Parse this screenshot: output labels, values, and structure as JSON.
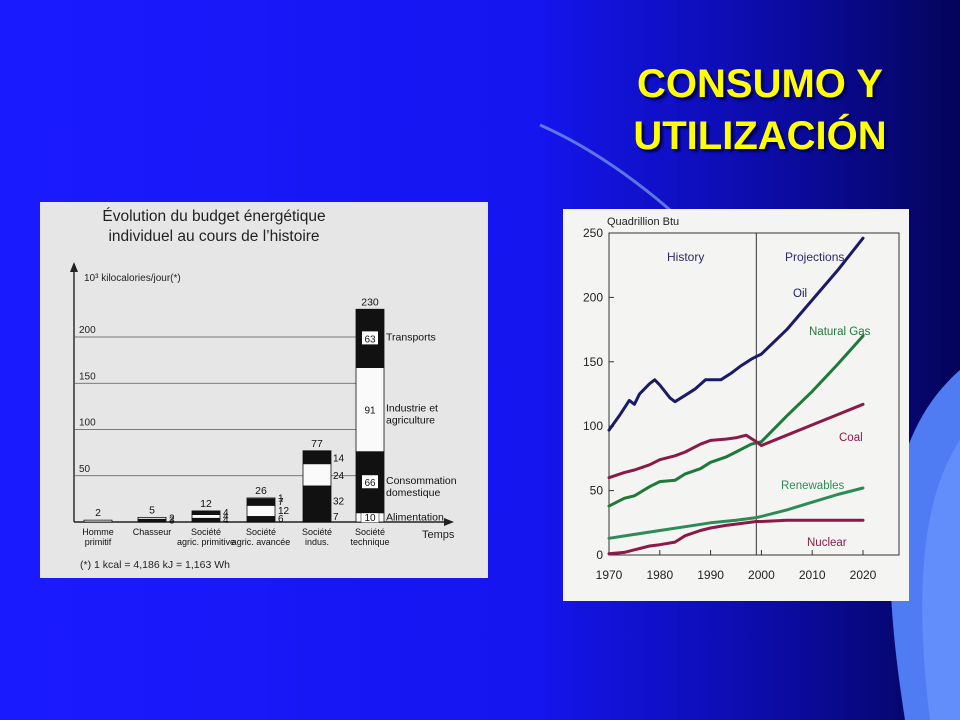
{
  "slide": {
    "title_line1": "CONSUMO Y",
    "title_line2": "UTILIZACIÓN"
  },
  "colors": {
    "background": "#1515f0",
    "title": "#ffff00",
    "oil": "#1a1a66",
    "natural_gas": "#1f7a3a",
    "coal": "#8b1a4a",
    "renewables": "#2e8b57",
    "nuclear": "#8b1a4a"
  },
  "chart_data": [
    {
      "type": "bar",
      "title_line1": "Évolution du budget énergétique",
      "title_line2": "individuel au cours de l’histoire",
      "ylabel": "10³ kilocalories/jour(*)",
      "xlabel": "Temps",
      "ylim": [
        0,
        230
      ],
      "y_ticks": [
        "50",
        "100",
        "150",
        "200"
      ],
      "y_tick_values": [
        50,
        100,
        150,
        200
      ],
      "grid": true,
      "footnote": "(*) 1 kcal = 4,186 kJ = 1,163 Wh",
      "categories": [
        {
          "line1": "Homme",
          "line2": "primitif"
        },
        {
          "line1": "Chasseur",
          "line2": ""
        },
        {
          "line1": "Société",
          "line2": "agric. primitive"
        },
        {
          "line1": "Société",
          "line2": "agric. avancée"
        },
        {
          "line1": "Société",
          "line2": "indus."
        },
        {
          "line1": "Société",
          "line2": "technique"
        }
      ],
      "totals": [
        "2",
        "5",
        "12",
        "26",
        "77",
        "230"
      ],
      "total_values": [
        2,
        5,
        12,
        26,
        77,
        230
      ],
      "segments": [
        [
          {
            "value": 2,
            "label": "",
            "fill": "light"
          }
        ],
        [
          {
            "value": 3,
            "label": "3",
            "fill": "dark"
          },
          {
            "value": 2,
            "label": "2",
            "fill": "light"
          }
        ],
        [
          {
            "value": 4,
            "label": "4",
            "fill": "dark"
          },
          {
            "value": 4,
            "label": "4",
            "fill": "light"
          },
          {
            "value": 4,
            "label": "4",
            "fill": "dark"
          }
        ],
        [
          {
            "value": 6,
            "label": "6",
            "fill": "dark"
          },
          {
            "value": 12,
            "label": "12",
            "fill": "light"
          },
          {
            "value": 7,
            "label": "7",
            "fill": "dark"
          },
          {
            "value": 1,
            "label": "1",
            "fill": "light"
          }
        ],
        [
          {
            "value": 7,
            "label": "7",
            "fill": "dark"
          },
          {
            "value": 32,
            "label": "32",
            "fill": "dark"
          },
          {
            "value": 24,
            "label": "24",
            "fill": "light"
          },
          {
            "value": 14,
            "label": "14",
            "fill": "dark"
          }
        ],
        [
          {
            "value": 10,
            "label": "10",
            "fill": "light"
          },
          {
            "value": 66,
            "label": "66",
            "fill": "dark"
          },
          {
            "value": 91,
            "label": "91",
            "fill": "light"
          },
          {
            "value": 63,
            "label": "63",
            "fill": "dark"
          }
        ]
      ],
      "segment_legend": [
        {
          "line1": "Alimentation",
          "line2": ""
        },
        {
          "line1": "Consommation",
          "line2": "domestique"
        },
        {
          "line1": "Industrie et",
          "line2": "agriculture"
        },
        {
          "line1": "Transports",
          "line2": ""
        }
      ]
    },
    {
      "type": "line",
      "ylabel": "Quadrillion Btu",
      "xlim": [
        1970,
        2020
      ],
      "ylim": [
        0,
        250
      ],
      "x_ticks": [
        "1970",
        "1980",
        "1990",
        "2000",
        "2010",
        "2020"
      ],
      "x_tick_values": [
        1970,
        1980,
        1990,
        2000,
        2010,
        2020
      ],
      "y_ticks": [
        "0",
        "50",
        "100",
        "150",
        "200",
        "250"
      ],
      "y_tick_values": [
        0,
        50,
        100,
        150,
        200,
        250
      ],
      "region_labels": {
        "history": "History",
        "projections": "Projections"
      },
      "divider_x": 1999,
      "series": [
        {
          "name": "Oil",
          "color": "#1a1a66",
          "x": [
            1970,
            1972,
            1974,
            1975,
            1976,
            1978,
            1979,
            1980,
            1982,
            1983,
            1985,
            1987,
            1989,
            1990,
            1992,
            1994,
            1996,
            1998,
            1999,
            2000,
            2005,
            2010,
            2015,
            2020
          ],
          "y": [
            97,
            108,
            120,
            117,
            125,
            133,
            136,
            132,
            122,
            119,
            124,
            129,
            136,
            136,
            136,
            141,
            147,
            152,
            154,
            156,
            175,
            198,
            221,
            246
          ]
        },
        {
          "name": "Natural Gas",
          "color": "#1f7a3a",
          "x": [
            1970,
            1973,
            1975,
            1978,
            1980,
            1983,
            1985,
            1988,
            1990,
            1993,
            1995,
            1998,
            1999,
            2000,
            2005,
            2010,
            2015,
            2020
          ],
          "y": [
            38,
            44,
            46,
            53,
            57,
            58,
            63,
            67,
            72,
            76,
            80,
            86,
            87,
            88,
            108,
            127,
            148,
            170
          ],
          "projection_start_index": 12
        },
        {
          "name": "Coal",
          "color": "#8b1a4a",
          "x": [
            1970,
            1973,
            1975,
            1978,
            1980,
            1983,
            1985,
            1988,
            1990,
            1993,
            1995,
            1997,
            1999,
            2000,
            2005,
            2010,
            2015,
            2020
          ],
          "y": [
            60,
            64,
            66,
            70,
            74,
            77,
            80,
            86,
            89,
            90,
            91,
            93,
            88,
            85,
            93,
            101,
            109,
            117
          ]
        },
        {
          "name": "Renewables",
          "color": "#2e8b57",
          "x": [
            1970,
            1975,
            1980,
            1985,
            1990,
            1995,
            1999,
            2000,
            2005,
            2010,
            2015,
            2020
          ],
          "y": [
            13,
            16,
            19,
            22,
            25,
            27,
            29,
            30,
            35,
            41,
            47,
            52
          ],
          "projection_start_index": 6
        },
        {
          "name": "Nuclear",
          "color": "#8b1a4a",
          "x": [
            1970,
            1973,
            1975,
            1978,
            1980,
            1983,
            1985,
            1988,
            1990,
            1993,
            1995,
            1999,
            2000,
            2005,
            2010,
            2015,
            2020
          ],
          "y": [
            1,
            2,
            4,
            7,
            8,
            10,
            15,
            19,
            21,
            23,
            24,
            26,
            26,
            27,
            27,
            27,
            27
          ]
        }
      ]
    }
  ]
}
